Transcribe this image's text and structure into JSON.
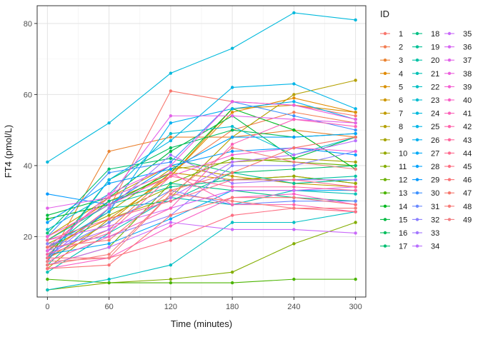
{
  "chart_data": {
    "type": "line",
    "title": "",
    "xlabel": "Time (minutes)",
    "ylabel": "FT4 (pmol/L)",
    "x": [
      0,
      60,
      120,
      180,
      240,
      300
    ],
    "x_ticks": [
      0,
      60,
      120,
      180,
      240,
      300
    ],
    "y_ticks": [
      20,
      40,
      60,
      80
    ],
    "xlim": [
      -10,
      310
    ],
    "ylim": [
      3,
      85
    ],
    "grid": true,
    "legend_title": "ID",
    "legend_position": "right",
    "series": [
      {
        "name": "1",
        "color": "#F8766D",
        "values": [
          15,
          28,
          61,
          58,
          57,
          54
        ]
      },
      {
        "name": "2",
        "color": "#F27D52",
        "values": [
          14,
          22,
          38,
          50,
          55,
          52
        ]
      },
      {
        "name": "3",
        "color": "#EA8331",
        "values": [
          13,
          44,
          48,
          48,
          50,
          48
        ]
      },
      {
        "name": "4",
        "color": "#E18A00",
        "values": [
          17,
          25,
          37,
          55,
          59,
          55
        ]
      },
      {
        "name": "5",
        "color": "#D89000",
        "values": [
          19,
          30,
          37,
          56,
          57,
          55
        ]
      },
      {
        "name": "6",
        "color": "#CD9600",
        "values": [
          14,
          24,
          38,
          36,
          37,
          35
        ]
      },
      {
        "name": "7",
        "color": "#C19C00",
        "values": [
          20,
          31,
          40,
          37,
          35,
          34
        ]
      },
      {
        "name": "8",
        "color": "#B4A000",
        "values": [
          11,
          25,
          31,
          48,
          60,
          64
        ]
      },
      {
        "name": "9",
        "color": "#A5A400",
        "values": [
          16,
          27,
          39,
          41,
          42,
          41
        ]
      },
      {
        "name": "10",
        "color": "#95A900",
        "values": [
          18,
          26,
          34,
          36,
          37,
          35
        ]
      },
      {
        "name": "11",
        "color": "#83AD00",
        "values": [
          5,
          7,
          8,
          10,
          18,
          24
        ]
      },
      {
        "name": "12",
        "color": "#6BB100",
        "values": [
          12,
          17,
          35,
          42,
          41,
          40
        ]
      },
      {
        "name": "13",
        "color": "#4BB400",
        "values": [
          8,
          7,
          7,
          7,
          8,
          8
        ]
      },
      {
        "name": "14",
        "color": "#00B81F",
        "values": [
          25,
          29,
          38,
          56,
          50,
          39
        ]
      },
      {
        "name": "15",
        "color": "#00BA42",
        "values": [
          26,
          31,
          44,
          54,
          42,
          48
        ]
      },
      {
        "name": "16",
        "color": "#00BD5C",
        "values": [
          14,
          36,
          45,
          50,
          48,
          49
        ]
      },
      {
        "name": "17",
        "color": "#00BE71",
        "values": [
          21,
          39,
          42,
          38,
          39,
          40
        ]
      },
      {
        "name": "18",
        "color": "#00C084",
        "values": [
          16,
          30,
          35,
          33,
          31,
          30
        ]
      },
      {
        "name": "19",
        "color": "#00C095",
        "values": [
          12,
          28,
          30,
          38,
          35,
          36
        ]
      },
      {
        "name": "20",
        "color": "#00C1A5",
        "values": [
          19,
          29,
          34,
          36,
          36,
          37
        ]
      },
      {
        "name": "21",
        "color": "#00C0B4",
        "values": [
          10,
          21,
          31,
          29,
          33,
          32
        ]
      },
      {
        "name": "22",
        "color": "#00BFC3",
        "values": [
          5,
          8,
          12,
          24,
          24,
          27
        ]
      },
      {
        "name": "23",
        "color": "#00BCD0",
        "values": [
          22,
          32,
          49,
          51,
          43,
          48
        ]
      },
      {
        "name": "24",
        "color": "#00B9DC",
        "values": [
          41,
          52,
          66,
          73,
          83,
          81
        ]
      },
      {
        "name": "25",
        "color": "#00B5E7",
        "values": [
          13,
          36,
          47,
          62,
          63,
          56
        ]
      },
      {
        "name": "26",
        "color": "#00B0F0",
        "values": [
          17,
          27,
          52,
          56,
          58,
          53
        ]
      },
      {
        "name": "27",
        "color": "#00A9F6",
        "values": [
          15,
          18,
          25,
          33,
          33,
          33
        ]
      },
      {
        "name": "28",
        "color": "#00A2FB",
        "values": [
          24,
          35,
          39,
          48,
          48,
          49
        ]
      },
      {
        "name": "29",
        "color": "#009AFF",
        "values": [
          32,
          29,
          40,
          44,
          45,
          43
        ]
      },
      {
        "name": "30",
        "color": "#3D91FF",
        "values": [
          20,
          38,
          41,
          58,
          54,
          50
        ]
      },
      {
        "name": "31",
        "color": "#6A88FF",
        "values": [
          15,
          24,
          33,
          29,
          30,
          30
        ]
      },
      {
        "name": "32",
        "color": "#8A7FFF",
        "values": [
          18,
          20,
          26,
          40,
          40,
          44
        ]
      },
      {
        "name": "33",
        "color": "#A376FF",
        "values": [
          14,
          28,
          43,
          35,
          36,
          36
        ]
      },
      {
        "name": "34",
        "color": "#B86EFF",
        "values": [
          16,
          22,
          31,
          41,
          43,
          47
        ]
      },
      {
        "name": "35",
        "color": "#C968F9",
        "values": [
          12,
          17,
          24,
          22,
          22,
          21
        ]
      },
      {
        "name": "36",
        "color": "#D665F1",
        "values": [
          19,
          23,
          28,
          33,
          33,
          34
        ]
      },
      {
        "name": "37",
        "color": "#E261E8",
        "values": [
          28,
          31,
          54,
          54,
          53,
          52
        ]
      },
      {
        "name": "38",
        "color": "#EC5FDD",
        "values": [
          16,
          32,
          40,
          58,
          57,
          53
        ]
      },
      {
        "name": "39",
        "color": "#F35ED2",
        "values": [
          20,
          29,
          37,
          43,
          45,
          44
        ]
      },
      {
        "name": "40",
        "color": "#F95FC5",
        "values": [
          11,
          14,
          23,
          31,
          32,
          29
        ]
      },
      {
        "name": "41",
        "color": "#FC61B9",
        "values": [
          13,
          20,
          28,
          46,
          53,
          51
        ]
      },
      {
        "name": "42",
        "color": "#FF63AB",
        "values": [
          17,
          31,
          38,
          29,
          29,
          27
        ]
      },
      {
        "name": "43",
        "color": "#FF669D",
        "values": [
          15,
          21,
          37,
          34,
          34,
          33
        ]
      },
      {
        "name": "44",
        "color": "#FF6A8F",
        "values": [
          19,
          25,
          30,
          36,
          36,
          34
        ]
      },
      {
        "name": "45",
        "color": "#FD6E82",
        "values": [
          14,
          14,
          19,
          26,
          28,
          27
        ]
      },
      {
        "name": "46",
        "color": "#FA7276",
        "values": [
          11,
          12,
          26,
          31,
          31,
          29
        ]
      },
      {
        "name": "47",
        "color": "#F6766C",
        "values": [
          17,
          19,
          33,
          38,
          45,
          48
        ]
      },
      {
        "name": "48",
        "color": "#F77A77",
        "values": [
          12,
          15,
          32,
          30,
          28,
          28
        ]
      },
      {
        "name": "49",
        "color": "#F27E82",
        "values": [
          13,
          14,
          32,
          45,
          41,
          39
        ]
      }
    ]
  }
}
